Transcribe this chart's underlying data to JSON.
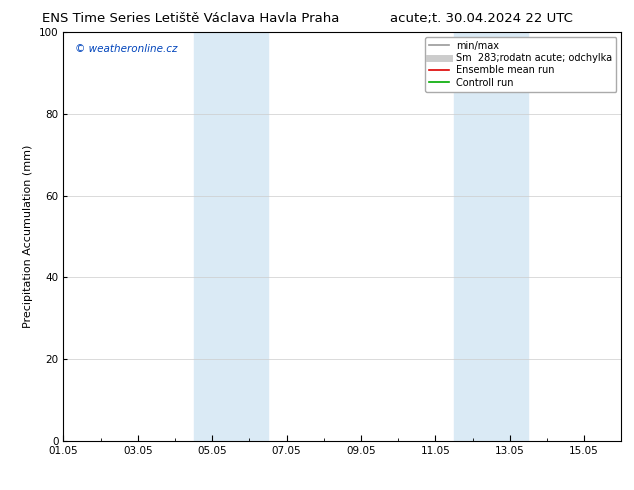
{
  "title_left": "ENS Time Series Letiště Václava Havla Praha",
  "title_right": "acute;t. 30.04.2024 22 UTC",
  "ylabel": "Precipitation Accumulation (mm)",
  "ylim": [
    0,
    100
  ],
  "yticks": [
    0,
    20,
    40,
    60,
    80,
    100
  ],
  "xlim": [
    0,
    15
  ],
  "xtick_labels": [
    "01.05",
    "03.05",
    "05.05",
    "07.05",
    "09.05",
    "11.05",
    "13.05",
    "15.05"
  ],
  "xtick_positions": [
    0,
    2,
    4,
    6,
    8,
    10,
    12,
    14
  ],
  "shaded_bands": [
    {
      "xmin": 3.5,
      "xmax": 5.5,
      "color": "#daeaf5"
    },
    {
      "xmin": 10.5,
      "xmax": 12.5,
      "color": "#daeaf5"
    }
  ],
  "watermark": "© weatheronline.cz",
  "watermark_color": "#0044bb",
  "legend_entries": [
    {
      "label": "min/max",
      "color": "#999999",
      "lw": 1.2
    },
    {
      "label": "Sm  283;rodatn acute; odchylka",
      "color": "#cccccc",
      "lw": 5
    },
    {
      "label": "Ensemble mean run",
      "color": "#dd0000",
      "lw": 1.2
    },
    {
      "label": "Controll run",
      "color": "#00aa00",
      "lw": 1.2
    }
  ],
  "title_fontsize": 9.5,
  "axis_fontsize": 8,
  "tick_fontsize": 7.5,
  "background_color": "#ffffff",
  "plot_bg_color": "#ffffff",
  "legend_fontsize": 7
}
